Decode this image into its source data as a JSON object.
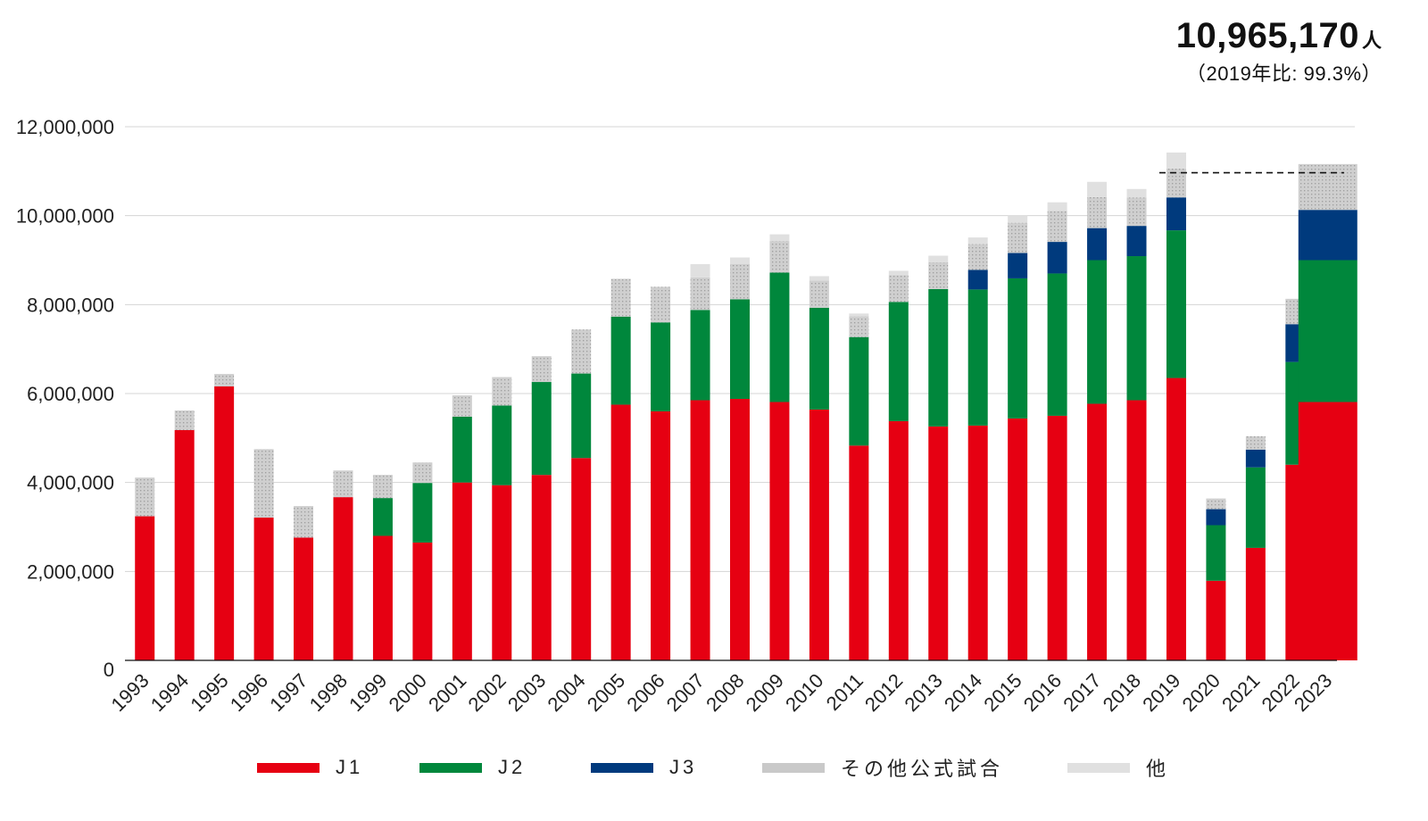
{
  "header": {
    "total": "10,965,170",
    "total_unit": "人",
    "comparison": "（2019年比: 99.3%）"
  },
  "legend": [
    {
      "label": "J1",
      "color": "#E60012"
    },
    {
      "label": "J2",
      "color": "#00873C"
    },
    {
      "label": "J3",
      "color": "#003A7D"
    },
    {
      "label": "その他公式試合",
      "color": "#C9C9C9"
    },
    {
      "label": "他",
      "color": "#E0E0E0"
    }
  ],
  "chart_data": {
    "type": "bar",
    "stacked": true,
    "categories": [
      "1993",
      "1994",
      "1995",
      "1996",
      "1997",
      "1998",
      "1999",
      "2000",
      "2001",
      "2002",
      "2003",
      "2004",
      "2005",
      "2006",
      "2007",
      "2008",
      "2009",
      "2010",
      "2011",
      "2012",
      "2013",
      "2014",
      "2015",
      "2016",
      "2017",
      "2018",
      "2019",
      "2020",
      "2021",
      "2022",
      "2023"
    ],
    "series": [
      {
        "name": "J1",
        "color": "#E60012",
        "values": [
          3240000,
          5180000,
          6160000,
          3210000,
          2760000,
          3670000,
          2800000,
          2650000,
          4000000,
          3940000,
          4170000,
          4550000,
          5750000,
          5600000,
          5850000,
          5880000,
          5810000,
          5640000,
          4830000,
          5380000,
          5260000,
          5280000,
          5440000,
          5500000,
          5770000,
          5850000,
          6350000,
          1790000,
          2530000,
          4400000,
          5810000
        ]
      },
      {
        "name": "J2",
        "color": "#00873C",
        "values": [
          0,
          0,
          0,
          0,
          0,
          0,
          850000,
          1340000,
          1480000,
          1790000,
          2090000,
          1900000,
          1980000,
          2000000,
          2030000,
          2240000,
          2910000,
          2290000,
          2440000,
          2680000,
          3090000,
          3060000,
          3150000,
          3200000,
          3230000,
          3240000,
          3320000,
          1250000,
          1810000,
          2310000,
          3190000
        ]
      },
      {
        "name": "J3",
        "color": "#003A7D",
        "values": [
          0,
          0,
          0,
          0,
          0,
          0,
          0,
          0,
          0,
          0,
          0,
          0,
          0,
          0,
          0,
          0,
          0,
          0,
          0,
          0,
          0,
          440000,
          570000,
          710000,
          720000,
          680000,
          740000,
          360000,
          400000,
          850000,
          1130000
        ]
      },
      {
        "name": "その他公式試合",
        "color": "#C9C9C9",
        "values": [
          870000,
          440000,
          280000,
          1540000,
          710000,
          600000,
          520000,
          460000,
          480000,
          640000,
          580000,
          990000,
          850000,
          800000,
          730000,
          790000,
          710000,
          610000,
          470000,
          600000,
          600000,
          580000,
          680000,
          700000,
          700000,
          640000,
          650000,
          240000,
          300000,
          570000,
          1030000
        ]
      },
      {
        "name": "他",
        "color": "#E0E0E0",
        "values": [
          0,
          0,
          0,
          0,
          0,
          0,
          0,
          0,
          0,
          0,
          0,
          0,
          0,
          0,
          300000,
          150000,
          150000,
          100000,
          60000,
          100000,
          150000,
          150000,
          160000,
          190000,
          340000,
          190000,
          360000,
          0,
          0,
          0,
          0
        ]
      }
    ],
    "ylim": [
      0,
      12000000
    ],
    "yticks": [
      0,
      2000000,
      4000000,
      6000000,
      8000000,
      10000000,
      12000000
    ],
    "ytick_labels": [
      "0",
      "2,000,000",
      "4,000,000",
      "6,000,000",
      "8,000,000",
      "10,000,000",
      "12,000,000"
    ],
    "reference_value": 10965170,
    "reference_from": "2019",
    "title": "",
    "xlabel": "",
    "ylabel": "",
    "grid": true,
    "legend_position": "bottom"
  }
}
